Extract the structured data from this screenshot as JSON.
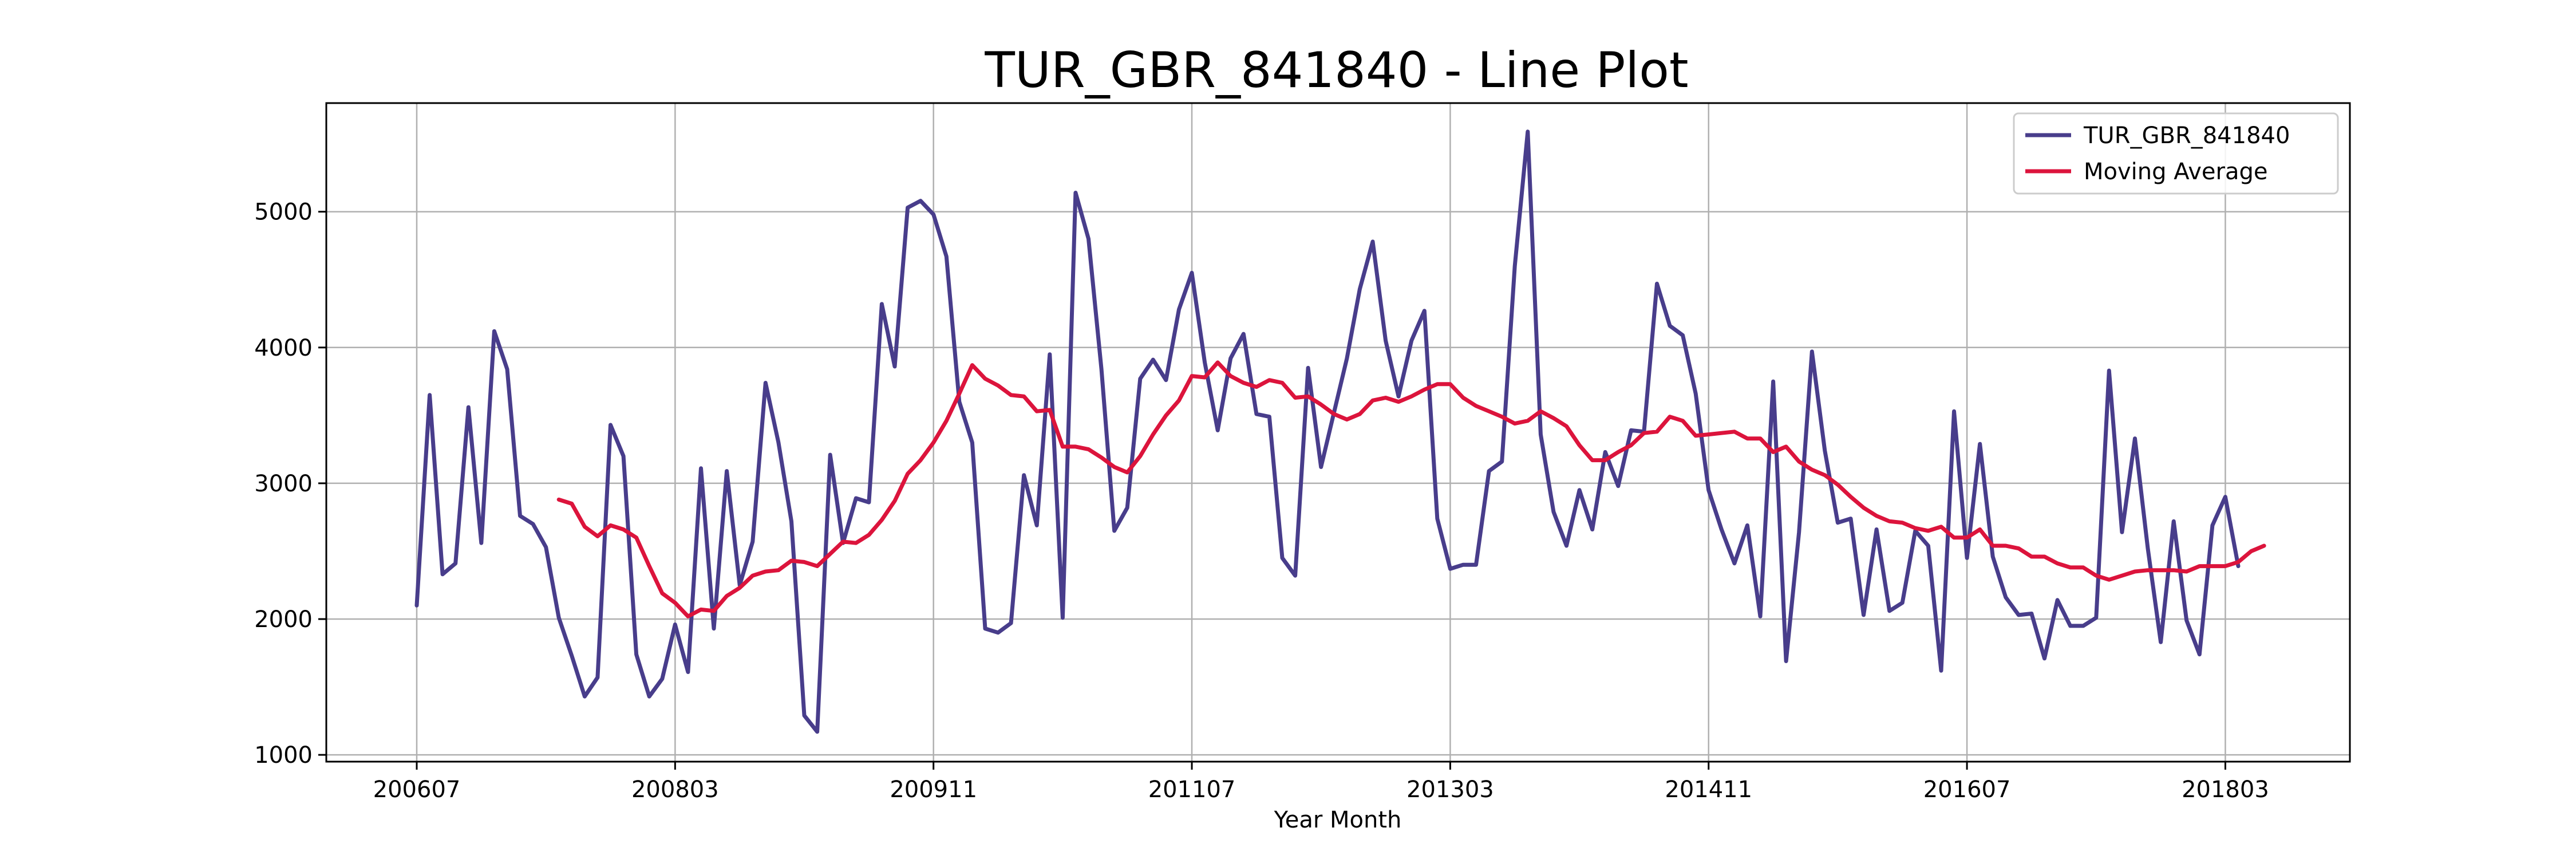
{
  "chart_data": {
    "type": "line",
    "title": "TUR_GBR_841840 - Line Plot",
    "xlabel": "Year Month",
    "ylabel": "",
    "ylim": [
      950,
      5800
    ],
    "yticks": [
      1000,
      2000,
      3000,
      4000,
      5000
    ],
    "x_start": 200607,
    "x_end": 201804,
    "xticks": [
      {
        "label": "200607",
        "index": 0
      },
      {
        "label": "200803",
        "index": 20
      },
      {
        "label": "200911",
        "index": 40
      },
      {
        "label": "201107",
        "index": 60
      },
      {
        "label": "201303",
        "index": 80
      },
      {
        "label": "201411",
        "index": 100
      },
      {
        "label": "201607",
        "index": 120
      },
      {
        "label": "201803",
        "index": 140
      }
    ],
    "grid": true,
    "legend_position": "top-right",
    "colors": {
      "series": "#483d8b",
      "moving_average": "#dc143c"
    },
    "series": [
      {
        "name": "TUR_GBR_841840",
        "values": [
          2100,
          3650,
          2330,
          2410,
          3560,
          2560,
          4120,
          3840,
          2760,
          2700,
          2530,
          2010,
          1730,
          1430,
          1570,
          3430,
          3200,
          1740,
          1430,
          1560,
          1960,
          1610,
          3110,
          1930,
          3090,
          2250,
          2570,
          3740,
          3300,
          2720,
          1290,
          1170,
          3210,
          2560,
          2890,
          2860,
          4320,
          3860,
          5030,
          5080,
          4980,
          4670,
          3600,
          3300,
          1930,
          1900,
          1970,
          3060,
          2690,
          3950,
          2010,
          5140,
          4800,
          3840,
          2650,
          2820,
          3770,
          3910,
          3760,
          4280,
          4550,
          3890,
          3390,
          3920,
          4100,
          3510,
          3490,
          2450,
          2320,
          3850,
          3120,
          3520,
          3920,
          4430,
          4780,
          4050,
          3640,
          4050,
          4270,
          2740,
          2370,
          2400,
          2400,
          3090,
          3160,
          4600,
          5590,
          3360,
          2790,
          2540,
          2950,
          2660,
          3230,
          2980,
          3390,
          3380,
          4470,
          4160,
          4090,
          3660,
          2950,
          2660,
          2410,
          2690,
          2020,
          3750,
          1690,
          2640,
          3970,
          3240,
          2710,
          2740,
          2030,
          2660,
          2060,
          2120,
          2650,
          2540,
          1620,
          3530,
          2450,
          3290,
          2460,
          2160,
          2030,
          2040,
          1710,
          2140,
          1950,
          1950,
          2010,
          3830,
          2640,
          3330,
          2520,
          1830,
          2720,
          1990,
          1740,
          2690,
          2900,
          2390
        ]
      },
      {
        "name": "Moving Average",
        "offset": 11,
        "values": [
          2880,
          2850,
          2680,
          2610,
          2690,
          2660,
          2600,
          2390,
          2190,
          2120,
          2020,
          2070,
          2060,
          2170,
          2230,
          2320,
          2350,
          2360,
          2430,
          2420,
          2390,
          2480,
          2570,
          2560,
          2620,
          2730,
          2870,
          3070,
          3170,
          3300,
          3460,
          3660,
          3870,
          3770,
          3720,
          3650,
          3640,
          3530,
          3540,
          3270,
          3270,
          3250,
          3190,
          3120,
          3080,
          3200,
          3360,
          3500,
          3610,
          3790,
          3780,
          3890,
          3790,
          3740,
          3710,
          3760,
          3740,
          3630,
          3640,
          3580,
          3510,
          3470,
          3510,
          3610,
          3630,
          3600,
          3640,
          3690,
          3730,
          3730,
          3630,
          3570,
          3530,
          3490,
          3440,
          3460,
          3530,
          3480,
          3420,
          3280,
          3170,
          3170,
          3230,
          3280,
          3370,
          3380,
          3490,
          3460,
          3350,
          3360,
          3370,
          3380,
          3330,
          3330,
          3230,
          3270,
          3160,
          3100,
          3060,
          2990,
          2900,
          2820,
          2760,
          2720,
          2710,
          2670,
          2650,
          2680,
          2600,
          2600,
          2660,
          2540,
          2540,
          2520,
          2460,
          2460,
          2410,
          2380,
          2380,
          2320,
          2290,
          2320,
          2350,
          2360,
          2360,
          2360,
          2350,
          2390,
          2390,
          2390,
          2420,
          2500,
          2540
        ]
      }
    ]
  }
}
